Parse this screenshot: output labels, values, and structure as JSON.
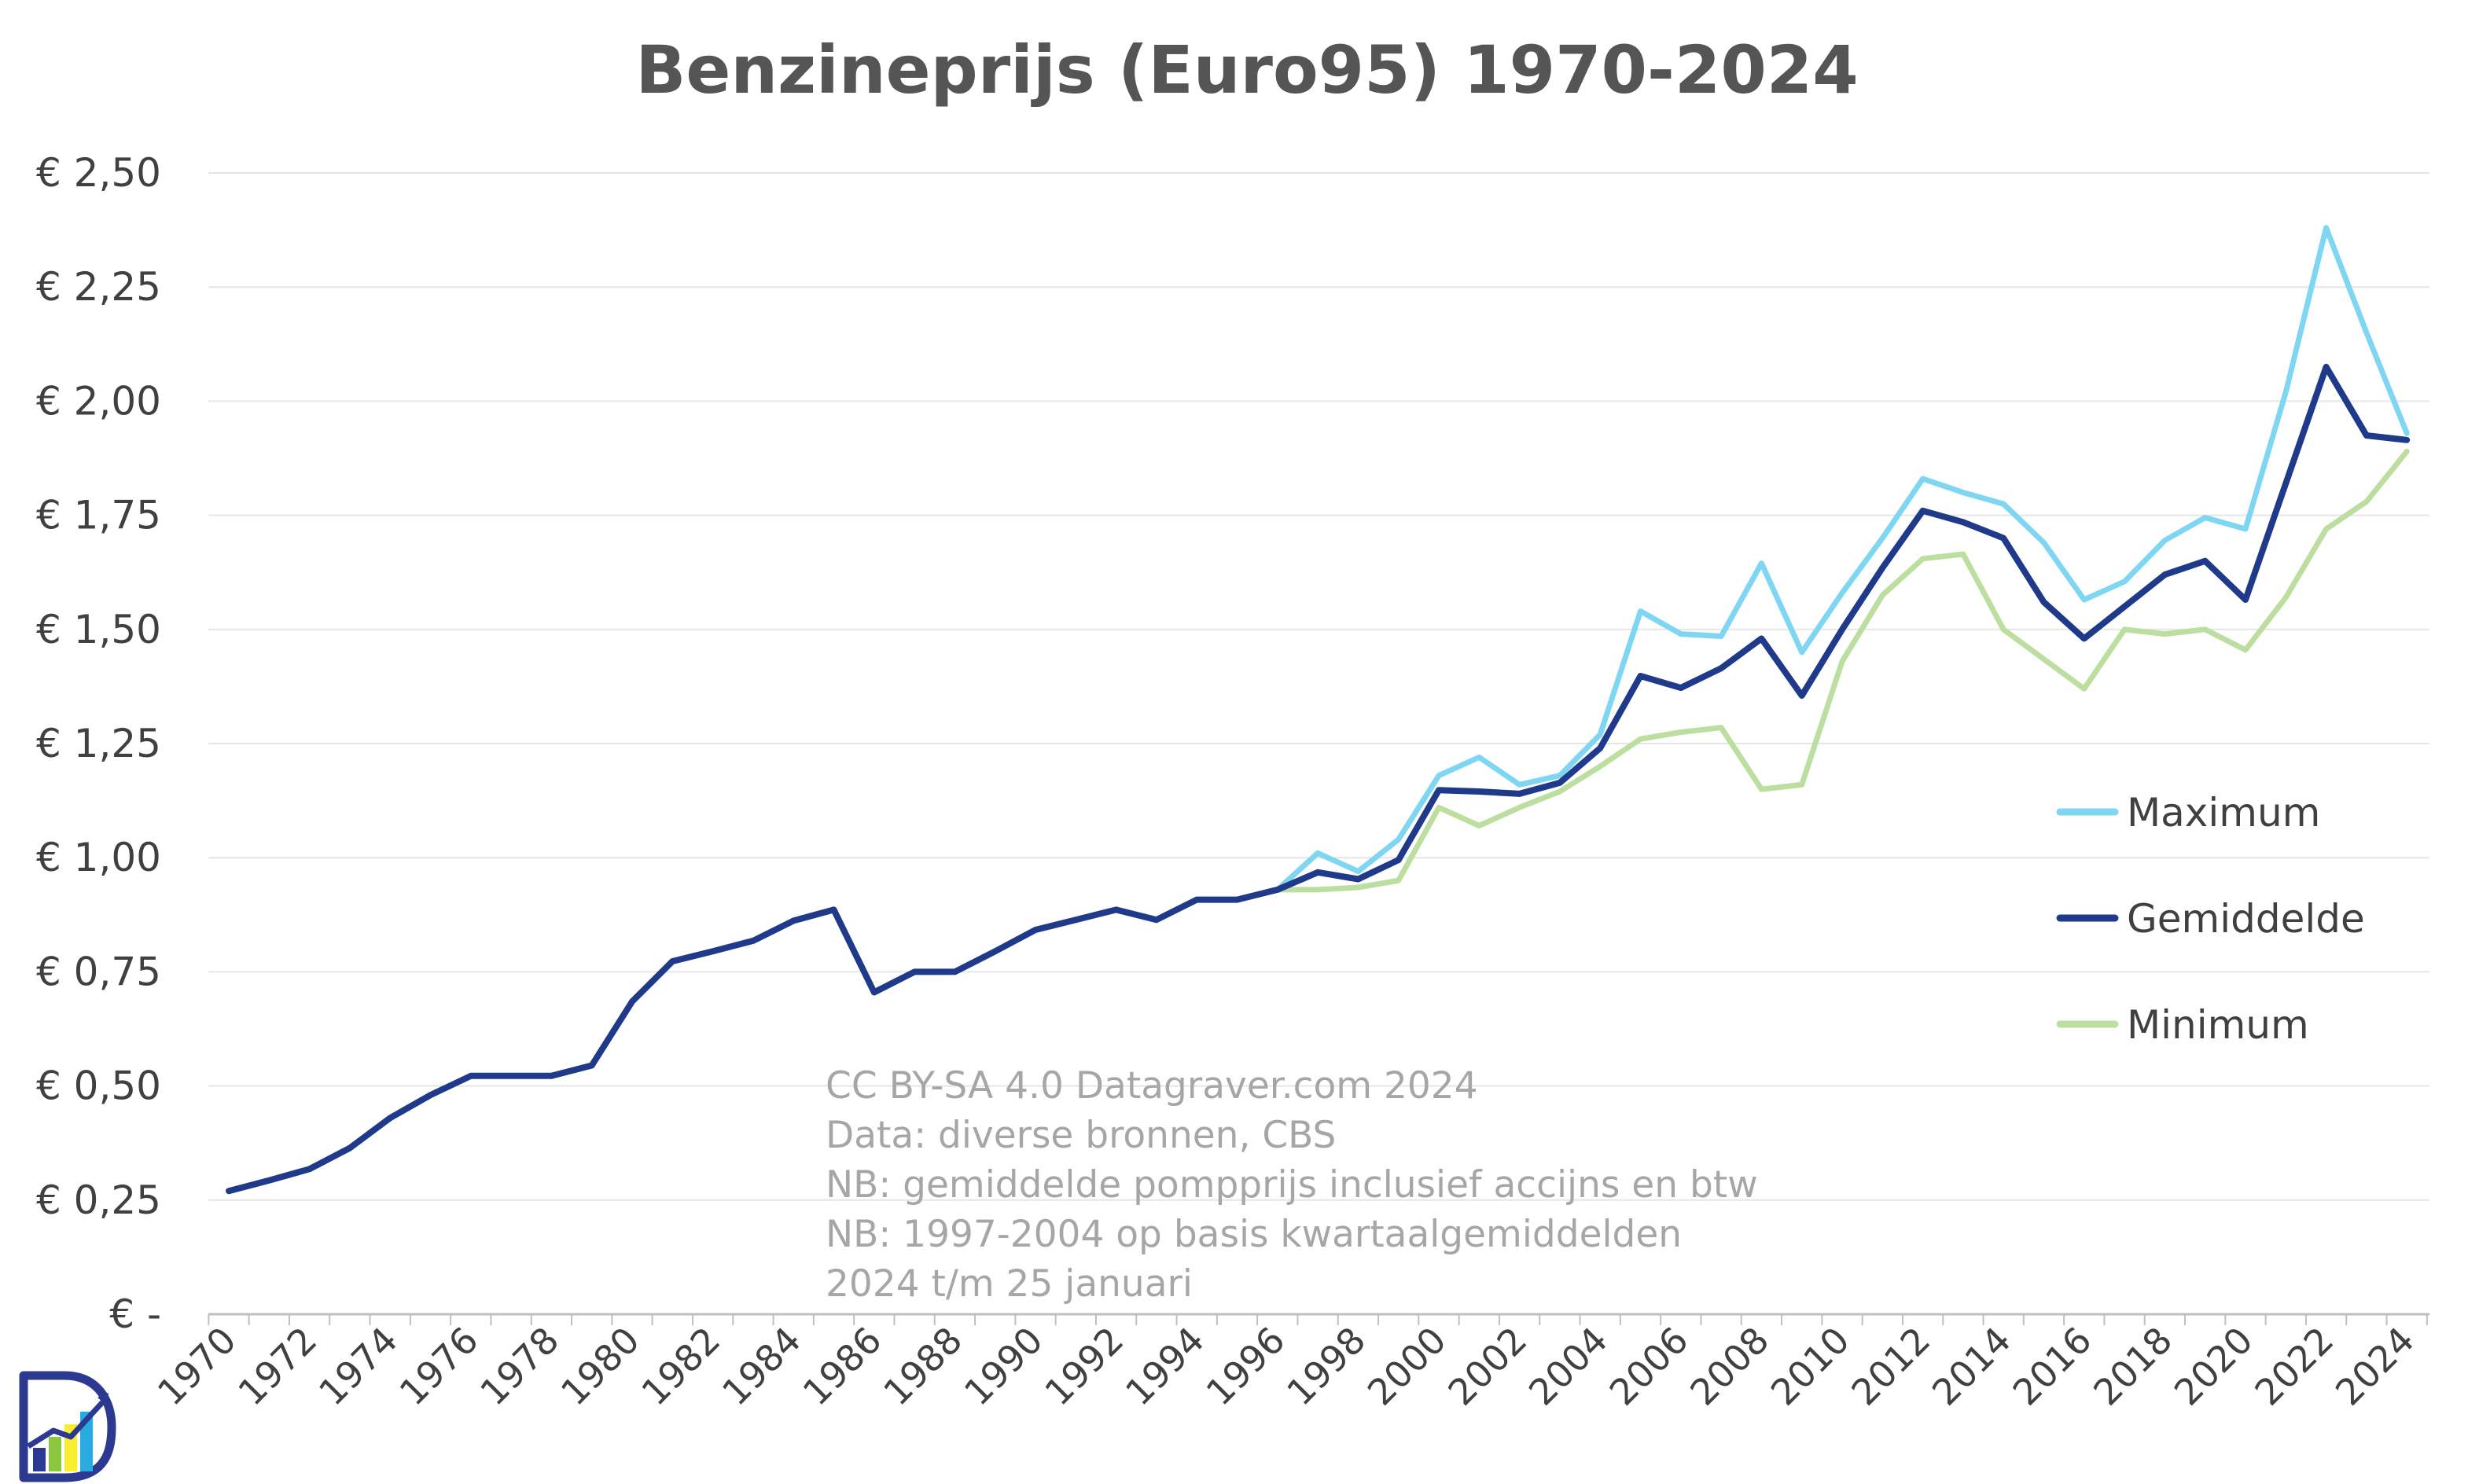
{
  "chart_data": {
    "type": "line",
    "title": "Benzineprijs (Euro95) 1970-2024",
    "ylim": [
      0,
      2.5
    ],
    "y_ticks": [
      0,
      0.25,
      0.5,
      0.75,
      1.0,
      1.25,
      1.5,
      1.75,
      2.0,
      2.25,
      2.5
    ],
    "y_tick_labels": [
      "€ -",
      "€ 0,25",
      "€ 0,50",
      "€ 0,75",
      "€ 1,00",
      "€ 1,25",
      "€ 1,50",
      "€ 1,75",
      "€ 2,00",
      "€ 2,25",
      "€ 2,50"
    ],
    "x_tick_labels": [
      "1970",
      "1972",
      "1974",
      "1976",
      "1978",
      "1980",
      "1982",
      "1984",
      "1986",
      "1988",
      "1990",
      "1992",
      "1994",
      "1996",
      "1998",
      "2000",
      "2002",
      "2004",
      "2006",
      "2008",
      "2010",
      "2012",
      "2014",
      "2016",
      "2018",
      "2020",
      "2022",
      "2024"
    ],
    "grid": true,
    "legend_position": "right",
    "series": [
      {
        "name": "Maximum",
        "color": "#7fd6f2",
        "x": [
          1996,
          1997,
          1998,
          1999,
          2000,
          2001,
          2002,
          2003,
          2004,
          2005,
          2006,
          2007,
          2008,
          2009,
          2010,
          2011,
          2012,
          2013,
          2014,
          2015,
          2016,
          2017,
          2018,
          2019,
          2020,
          2021,
          2022,
          2023,
          2024
        ],
        "values": [
          0.93,
          1.01,
          0.97,
          1.04,
          1.18,
          1.22,
          1.16,
          1.18,
          1.27,
          1.54,
          1.49,
          1.485,
          1.645,
          1.45,
          1.58,
          1.7,
          1.83,
          1.8,
          1.775,
          1.69,
          1.565,
          1.605,
          1.695,
          1.745,
          1.72,
          2.02,
          2.38,
          2.15,
          1.93
        ]
      },
      {
        "name": "Gemiddelde",
        "color": "#1f3a8a",
        "x": [
          1970,
          1971,
          1972,
          1973,
          1974,
          1975,
          1976,
          1977,
          1978,
          1979,
          1980,
          1981,
          1982,
          1983,
          1984,
          1985,
          1986,
          1987,
          1988,
          1989,
          1990,
          1991,
          1992,
          1993,
          1994,
          1995,
          1996,
          1997,
          1998,
          1999,
          2000,
          2001,
          2002,
          2003,
          2004,
          2005,
          2006,
          2007,
          2008,
          2009,
          2010,
          2011,
          2012,
          2013,
          2014,
          2015,
          2016,
          2017,
          2018,
          2019,
          2020,
          2021,
          2022,
          2023,
          2024
        ],
        "values": [
          0.27,
          0.293,
          0.318,
          0.364,
          0.43,
          0.48,
          0.522,
          0.522,
          0.522,
          0.545,
          0.685,
          0.773,
          0.795,
          0.818,
          0.862,
          0.886,
          0.705,
          0.75,
          0.75,
          0.795,
          0.842,
          0.864,
          0.886,
          0.864,
          0.908,
          0.908,
          0.93,
          0.968,
          0.953,
          0.995,
          1.148,
          1.145,
          1.14,
          1.164,
          1.24,
          1.398,
          1.372,
          1.415,
          1.48,
          1.355,
          1.5,
          1.635,
          1.76,
          1.735,
          1.7,
          1.56,
          1.48,
          1.55,
          1.62,
          1.65,
          1.565,
          1.82,
          2.075,
          1.925,
          1.915
        ]
      },
      {
        "name": "Minimum",
        "color": "#bcdfa0",
        "x": [
          1996,
          1997,
          1998,
          1999,
          2000,
          2001,
          2002,
          2003,
          2004,
          2005,
          2006,
          2007,
          2008,
          2009,
          2010,
          2011,
          2012,
          2013,
          2014,
          2015,
          2016,
          2017,
          2018,
          2019,
          2020,
          2021,
          2022,
          2023,
          2024
        ],
        "values": [
          0.93,
          0.93,
          0.935,
          0.95,
          1.11,
          1.07,
          1.11,
          1.145,
          1.2,
          1.26,
          1.275,
          1.285,
          1.15,
          1.16,
          1.43,
          1.575,
          1.655,
          1.665,
          1.5,
          1.435,
          1.37,
          1.5,
          1.49,
          1.5,
          1.455,
          1.57,
          1.72,
          1.78,
          1.89
        ]
      }
    ],
    "annotations": [
      "CC BY-SA 4.0 Datagraver.com 2024",
      "Data: diverse bronnen, CBS",
      "NB: gemiddelde pompprijs inclusief accijns en btw",
      "NB: 1997-2004 op basis kwartaalgemiddelden",
      "2024 t/m  25 januari"
    ]
  },
  "logo": {
    "icon": "datagraver-logo-icon",
    "colors": [
      "#2b3990",
      "#8dc63f",
      "#f9ed32",
      "#29abe2"
    ]
  }
}
